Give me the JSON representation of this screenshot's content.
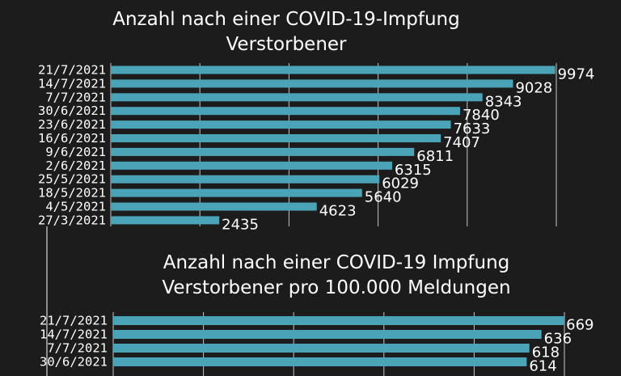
{
  "colors": {
    "background": "#1c1c1c",
    "bar": "#4ba3b8",
    "text": "#ffffff",
    "grid": "#ffffff"
  },
  "chart_data": [
    {
      "type": "bar",
      "orientation": "horizontal",
      "title_lines": [
        "Anzahl nach einer COVID-19-Impfung",
        "Verstorbener"
      ],
      "categories": [
        "21/7/2021",
        "14/7/2021",
        "7/7/2021",
        "30/6/2021",
        "23/6/2021",
        "16/6/2021",
        "9/6/2021",
        "2/6/2021",
        "25/5/2021",
        "18/5/2021",
        "4/5/2021",
        "27/3/2021"
      ],
      "values": [
        9974,
        9028,
        8343,
        7840,
        7633,
        7407,
        6811,
        6315,
        6029,
        5640,
        4623,
        2435
      ],
      "xlim": [
        0,
        10000
      ],
      "grid": true
    },
    {
      "type": "bar",
      "orientation": "horizontal",
      "title_lines": [
        "Anzahl nach einer COVID-19 Impfung",
        "Verstorbener pro 100.000 Meldungen"
      ],
      "categories": [
        "21/7/2021",
        "14/7/2021",
        "7/7/2021",
        "30/6/2021"
      ],
      "values": [
        669,
        636,
        618,
        614
      ],
      "xlim": [
        0,
        670
      ],
      "grid": true
    }
  ]
}
